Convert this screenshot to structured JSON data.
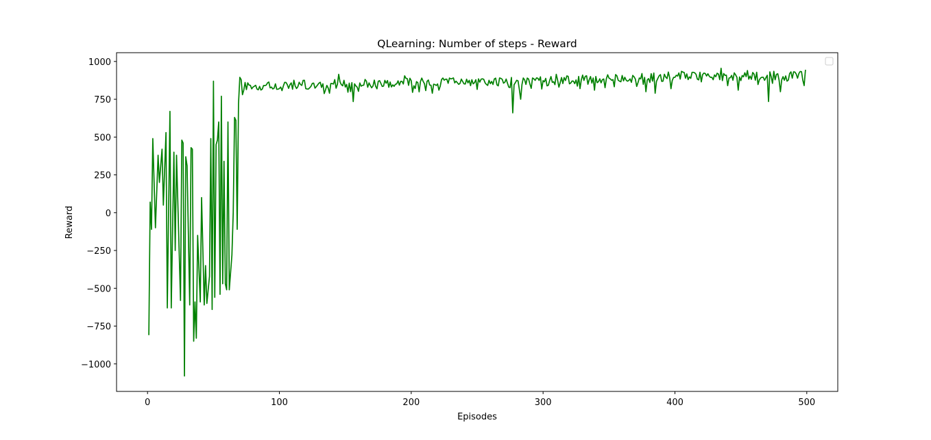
{
  "chart_data": {
    "type": "line",
    "title": "QLearning: Number of steps - Reward",
    "xlabel": "Episodes",
    "ylabel": "Reward",
    "xlim": [
      -23.5,
      523.5
    ],
    "ylim": [
      -1182,
      1058
    ],
    "xticks": [
      0,
      100,
      200,
      300,
      400,
      500
    ],
    "yticks": [
      -1000,
      -750,
      -500,
      -250,
      0,
      250,
      500,
      750,
      1000
    ],
    "xtick_labels": [
      "0",
      "100",
      "200",
      "300",
      "400",
      "500"
    ],
    "ytick_labels": [
      "−1000",
      "−750",
      "−500",
      "−250",
      "0",
      "250",
      "500",
      "750",
      "1000"
    ],
    "grid": false,
    "legend": "top-right",
    "line_color": "#008000",
    "series": [
      {
        "keypoints": [
          [
            1,
            -810
          ],
          [
            2,
            70
          ],
          [
            3,
            -110
          ],
          [
            4,
            490
          ],
          [
            6,
            -100
          ],
          [
            8,
            380
          ],
          [
            9,
            200
          ],
          [
            11,
            420
          ],
          [
            12,
            50
          ],
          [
            14,
            530
          ],
          [
            15,
            -630
          ],
          [
            17,
            670
          ],
          [
            18,
            -630
          ],
          [
            20,
            400
          ],
          [
            21,
            -250
          ],
          [
            22,
            380
          ],
          [
            25,
            -580
          ],
          [
            26,
            480
          ],
          [
            27,
            460
          ],
          [
            28,
            -1080
          ],
          [
            29,
            370
          ],
          [
            30,
            310
          ],
          [
            32,
            -610
          ],
          [
            33,
            430
          ],
          [
            34,
            420
          ],
          [
            35,
            -850
          ],
          [
            36,
            -590
          ],
          [
            37,
            -830
          ],
          [
            38,
            -150
          ],
          [
            40,
            -590
          ],
          [
            41,
            100
          ],
          [
            43,
            -610
          ],
          [
            44,
            -350
          ],
          [
            45,
            -600
          ],
          [
            47,
            -420
          ],
          [
            48,
            490
          ],
          [
            49,
            -640
          ],
          [
            50,
            870
          ],
          [
            51,
            -560
          ],
          [
            52,
            450
          ],
          [
            53,
            480
          ],
          [
            54,
            600
          ],
          [
            55,
            -540
          ],
          [
            56,
            770
          ],
          [
            57,
            -470
          ],
          [
            58,
            340
          ],
          [
            59,
            -470
          ],
          [
            60,
            -510
          ],
          [
            61,
            600
          ],
          [
            62,
            -510
          ],
          [
            64,
            -280
          ],
          [
            65,
            0
          ],
          [
            66,
            630
          ],
          [
            67,
            610
          ],
          [
            68,
            -110
          ],
          [
            69,
            720
          ],
          [
            70,
            895
          ],
          [
            71,
            880
          ],
          [
            72,
            780
          ]
        ],
        "stable_until": 499,
        "stable_base": [
          [
            72,
            840
          ],
          [
            200,
            860
          ],
          [
            300,
            870
          ],
          [
            400,
            900
          ],
          [
            499,
            905
          ]
        ],
        "stable_noise": 30,
        "dips": [
          [
            156,
            735
          ],
          [
            216,
            790
          ],
          [
            237,
            855
          ],
          [
            274,
            830
          ],
          [
            277,
            660
          ],
          [
            279,
            860
          ],
          [
            283,
            750
          ],
          [
            312,
            830
          ],
          [
            339,
            810
          ],
          [
            372,
            860
          ],
          [
            378,
            800
          ],
          [
            385,
            790
          ],
          [
            397,
            820
          ],
          [
            410,
            880
          ],
          [
            420,
            865
          ],
          [
            440,
            840
          ],
          [
            448,
            810
          ],
          [
            471,
            735
          ],
          [
            480,
            800
          ],
          [
            485,
            870
          ]
        ],
        "peaks": [
          [
            145,
            915
          ],
          [
            195,
            905
          ],
          [
            310,
            915
          ],
          [
            330,
            910
          ],
          [
            395,
            930
          ],
          [
            405,
            935
          ],
          [
            415,
            925
          ],
          [
            435,
            955
          ],
          [
            455,
            940
          ],
          [
            475,
            935
          ],
          [
            491,
            930
          ],
          [
            499,
            945
          ]
        ]
      }
    ]
  }
}
